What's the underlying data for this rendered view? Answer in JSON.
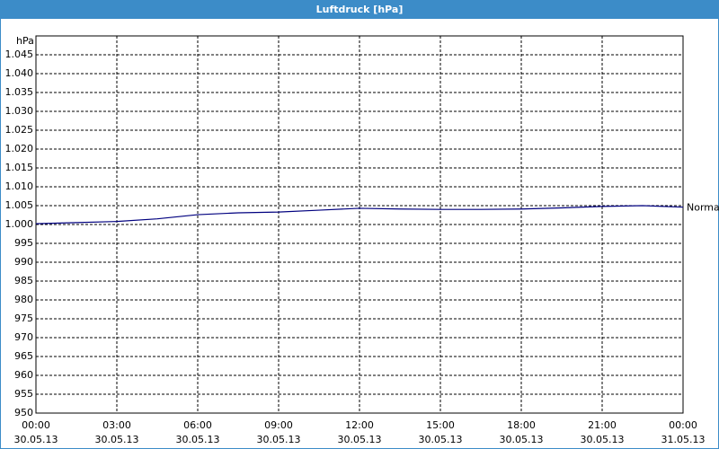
{
  "chart_data": {
    "type": "line",
    "title": "Luftdruck [hPa]",
    "y_label": "hPa",
    "x": [
      "2013-05-30T00:00",
      "2013-05-30T01:30",
      "2013-05-30T03:00",
      "2013-05-30T04:30",
      "2013-05-30T06:00",
      "2013-05-30T07:30",
      "2013-05-30T09:00",
      "2013-05-30T10:30",
      "2013-05-30T12:00",
      "2013-05-30T13:30",
      "2013-05-30T15:00",
      "2013-05-30T16:30",
      "2013-05-30T18:00",
      "2013-05-30T19:30",
      "2013-05-30T21:00",
      "2013-05-30T22:30",
      "2013-05-31T00:00"
    ],
    "series": [
      {
        "name": "Normal",
        "color": "#00007f",
        "values": [
          1000.2,
          1000.5,
          1000.8,
          1001.5,
          1002.6,
          1003.1,
          1003.3,
          1003.8,
          1004.3,
          1004.1,
          1004.0,
          1004.0,
          1004.1,
          1004.4,
          1004.8,
          1005.0,
          1004.6
        ]
      }
    ],
    "xlim": [
      "2013-05-30T00:00",
      "2013-05-31T00:00"
    ],
    "xticks": [
      {
        "value": "2013-05-30T00:00",
        "label": [
          "00:00",
          "30.05.13"
        ]
      },
      {
        "value": "2013-05-30T03:00",
        "label": [
          "03:00",
          "30.05.13"
        ]
      },
      {
        "value": "2013-05-30T06:00",
        "label": [
          "06:00",
          "30.05.13"
        ]
      },
      {
        "value": "2013-05-30T09:00",
        "label": [
          "09:00",
          "30.05.13"
        ]
      },
      {
        "value": "2013-05-30T12:00",
        "label": [
          "12:00",
          "30.05.13"
        ]
      },
      {
        "value": "2013-05-30T15:00",
        "label": [
          "15:00",
          "30.05.13"
        ]
      },
      {
        "value": "2013-05-30T18:00",
        "label": [
          "18:00",
          "30.05.13"
        ]
      },
      {
        "value": "2013-05-30T21:00",
        "label": [
          "21:00",
          "30.05.13"
        ]
      },
      {
        "value": "2013-05-31T00:00",
        "label": [
          "00:00",
          "31.05.13"
        ]
      }
    ],
    "ylim": [
      950,
      1050
    ],
    "yticks": [
      950,
      955,
      960,
      965,
      970,
      975,
      980,
      985,
      990,
      995,
      {
        "value": 1000,
        "label": "1.000"
      },
      {
        "value": 1005,
        "label": "1.005"
      },
      {
        "value": 1010,
        "label": "1.010"
      },
      {
        "value": 1015,
        "label": "1.015"
      },
      {
        "value": 1020,
        "label": "1.020"
      },
      {
        "value": 1025,
        "label": "1.025"
      },
      {
        "value": 1030,
        "label": "1.030"
      },
      {
        "value": 1035,
        "label": "1.035"
      },
      {
        "value": 1040,
        "label": "1.040"
      },
      {
        "value": 1045,
        "label": "1.045"
      }
    ],
    "grid": true
  }
}
